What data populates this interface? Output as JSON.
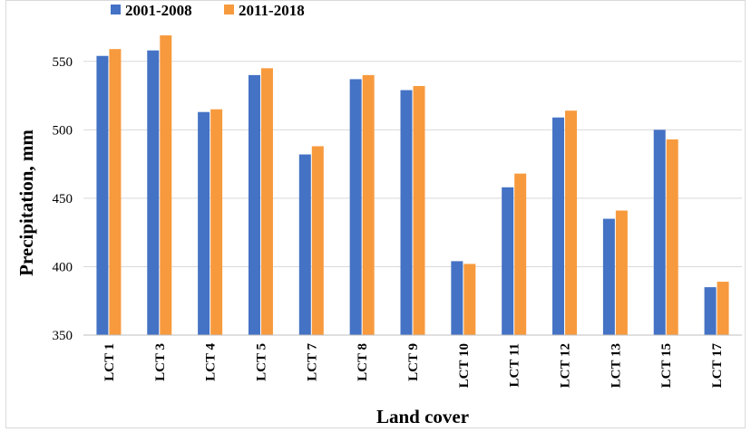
{
  "chart_data": {
    "type": "bar",
    "title": "",
    "xlabel": "Land cover",
    "ylabel": "Precipitation, mm",
    "ylim": [
      350,
      575
    ],
    "yticks": [
      350,
      400,
      450,
      500,
      550
    ],
    "grid": true,
    "legend_position": "top-left",
    "categories": [
      "LCT 1",
      "LCT 3",
      "LCT 4",
      "LCT 5",
      "LCT 7",
      "LCT 8",
      "LCT 9",
      "LCT 10",
      "LCT 11",
      "LCT 12",
      "LCT 13",
      "LCT 15",
      "LCT 17"
    ],
    "series": [
      {
        "name": "2001-2008",
        "color": "#4472c4",
        "values": [
          554,
          558,
          513,
          540,
          482,
          537,
          529,
          404,
          458,
          509,
          435,
          500,
          385
        ]
      },
      {
        "name": "2011-2018",
        "color": "#f79a3e",
        "values": [
          559,
          569,
          515,
          545,
          488,
          540,
          532,
          402,
          468,
          514,
          441,
          493,
          389
        ]
      }
    ]
  }
}
